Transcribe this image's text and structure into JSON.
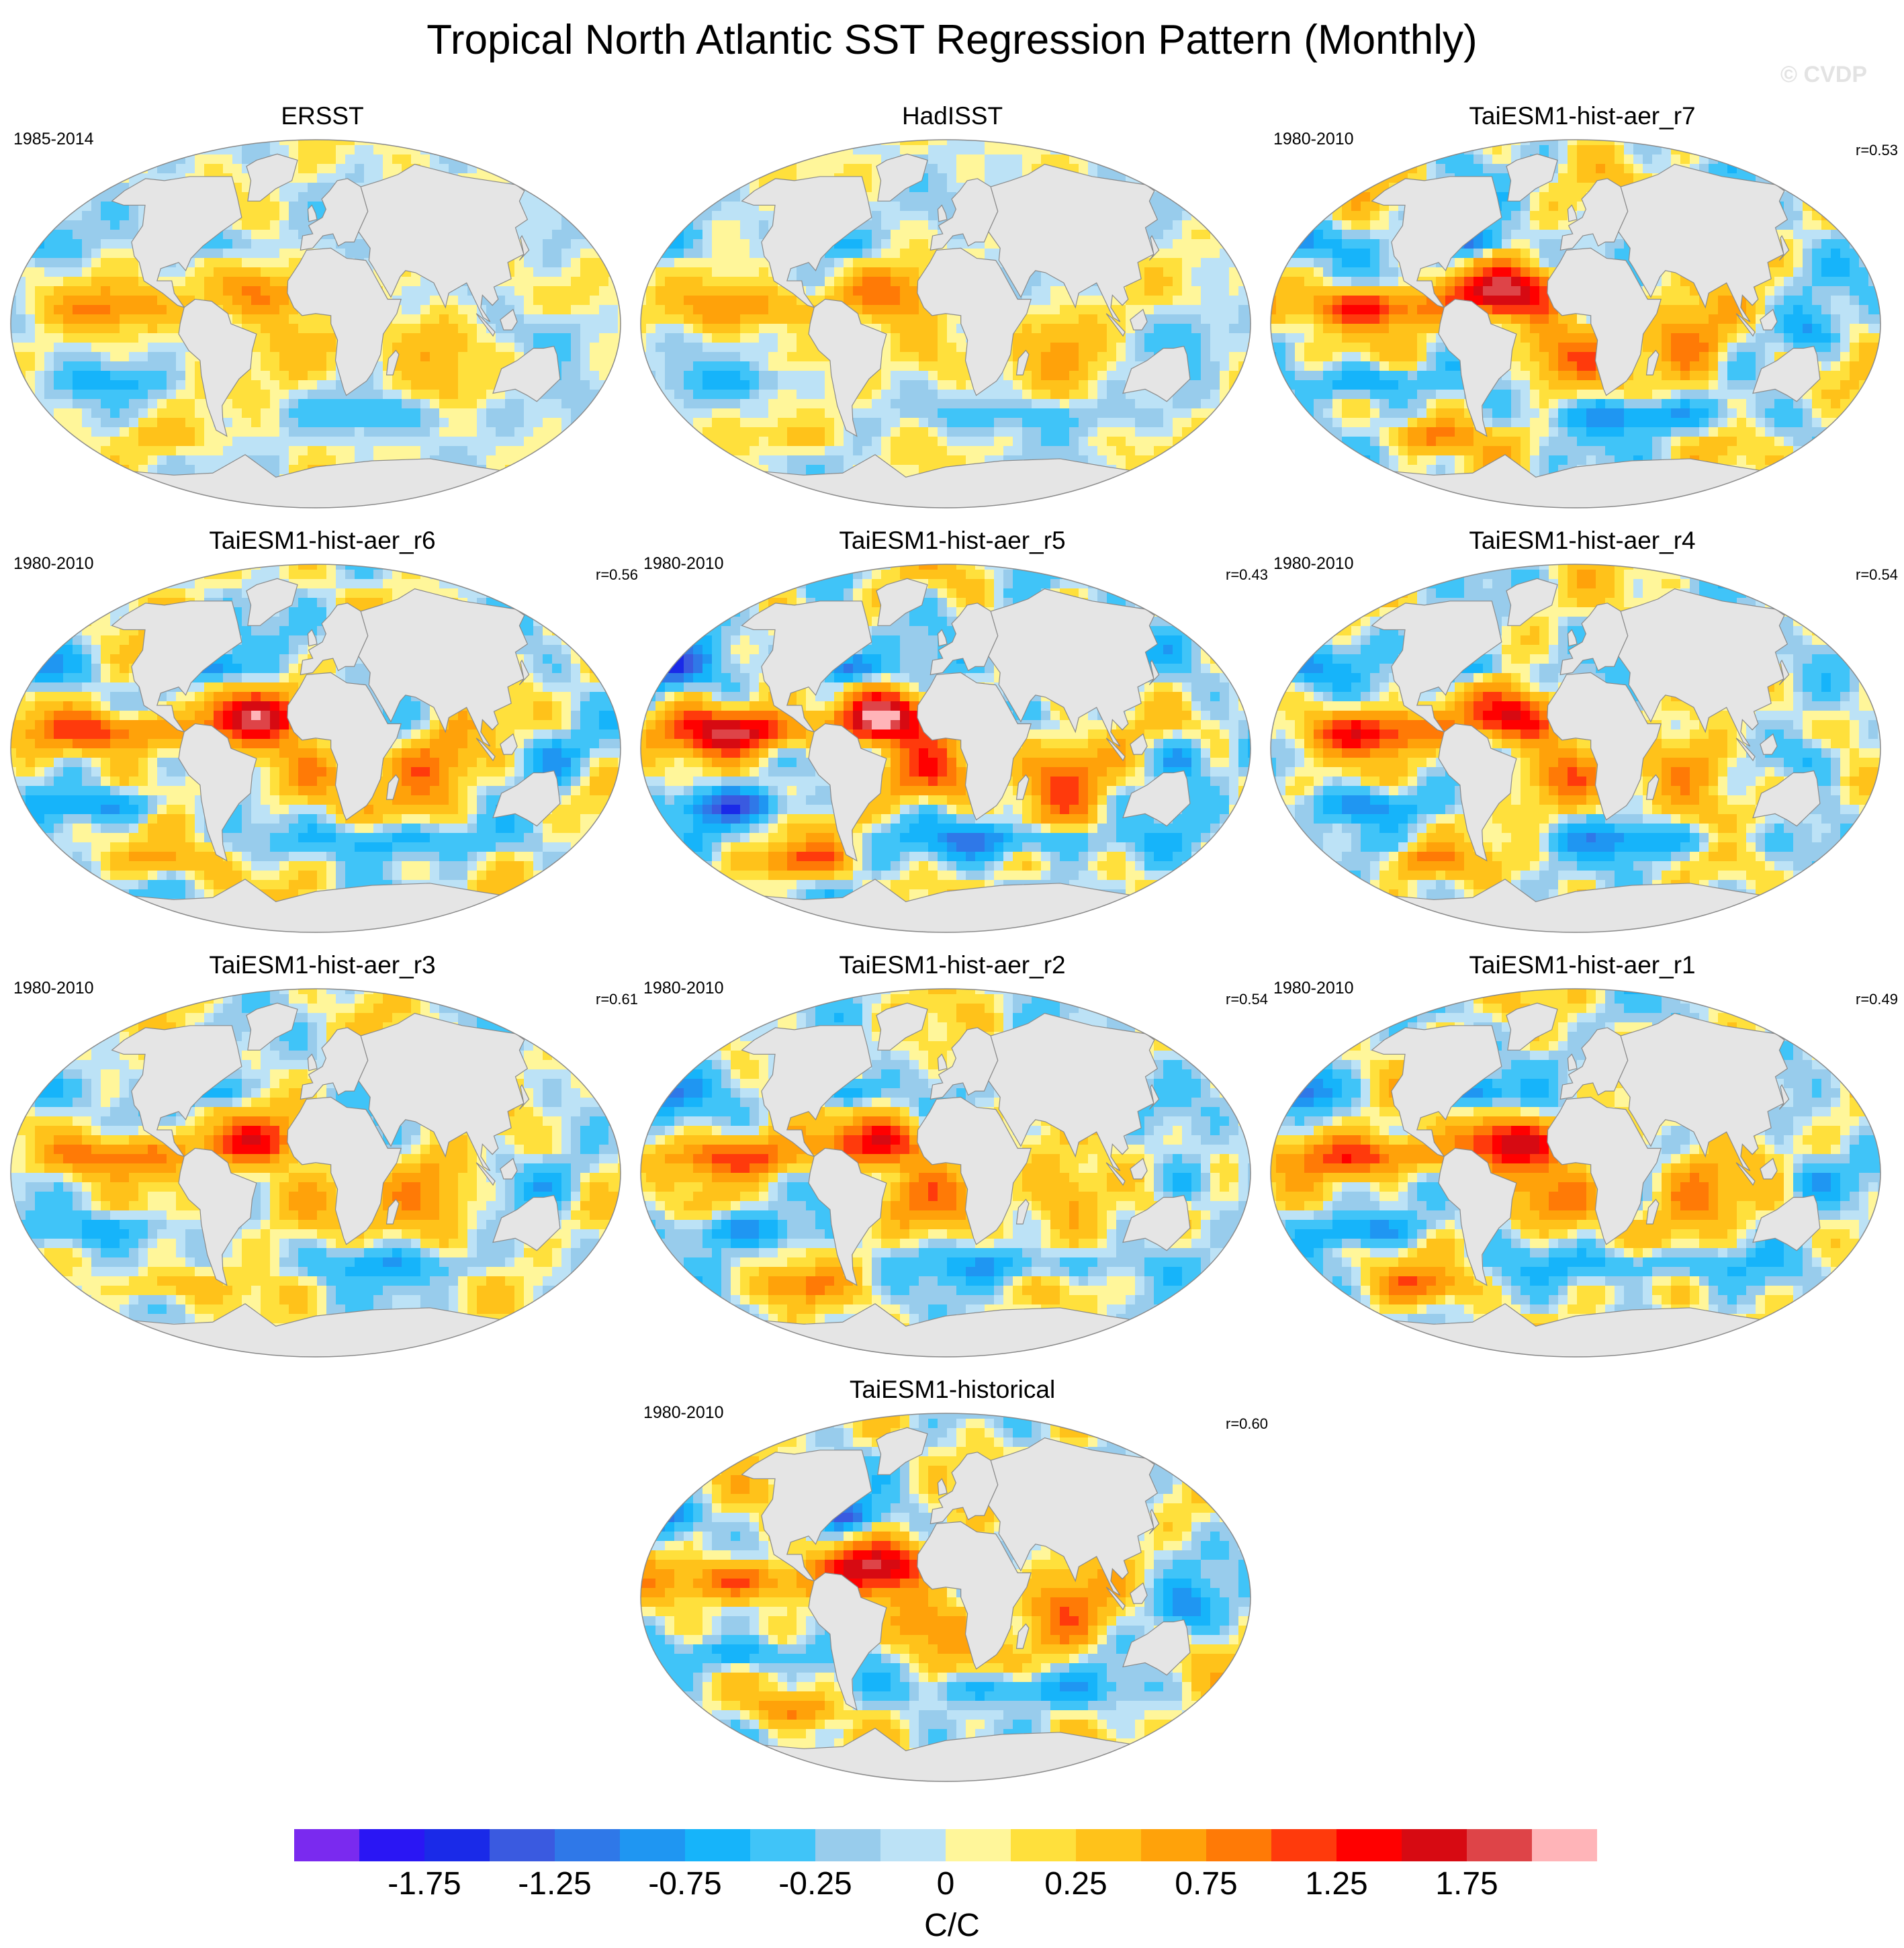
{
  "title": "Tropical North Atlantic SST Regression Pattern (Monthly)",
  "watermark": "© CVDP",
  "colorbar": {
    "units": "C/C",
    "tick_labels": [
      "-1.75",
      "-1.25",
      "-0.75",
      "-0.25",
      "0",
      "0.25",
      "0.75",
      "1.25",
      "1.75"
    ],
    "levels": [
      -2.0,
      -1.75,
      -1.5,
      -1.25,
      -1.0,
      -0.75,
      -0.5,
      -0.25,
      -0.1,
      0,
      0.1,
      0.25,
      0.5,
      0.75,
      1.0,
      1.25,
      1.5,
      1.75,
      2.0
    ],
    "colors": [
      "#7a2aef",
      "#2a16f4",
      "#1a2ae8",
      "#3a5ae0",
      "#2f78e8",
      "#1f96f2",
      "#16b4fa",
      "#40c4f8",
      "#98ccec",
      "#bce2f6",
      "#fff69a",
      "#ffe03c",
      "#ffc21a",
      "#ffa20a",
      "#ff7a06",
      "#ff3a0c",
      "#ff0000",
      "#d70a12",
      "#de4448",
      "#ffb4b8"
    ],
    "land_color": "#e5e5e5"
  },
  "panels": [
    {
      "title": "ERSST",
      "period": "1985-2014",
      "r": "",
      "amp": 0.55,
      "seed": 1
    },
    {
      "title": "HadISST",
      "period": "",
      "r": "",
      "amp": 0.55,
      "seed": 2
    },
    {
      "title": "TaiESM1-hist-aer_r7",
      "period": "1980-2010",
      "r": "r=0.53",
      "amp": 1.1,
      "seed": 7
    },
    {
      "title": "TaiESM1-hist-aer_r6",
      "period": "1980-2010",
      "r": "r=0.56",
      "amp": 1.0,
      "seed": 6
    },
    {
      "title": "TaiESM1-hist-aer_r5",
      "period": "1980-2010",
      "r": "r=0.43",
      "amp": 1.3,
      "seed": 5
    },
    {
      "title": "TaiESM1-hist-aer_r4",
      "period": "1980-2010",
      "r": "r=0.54",
      "amp": 1.0,
      "seed": 4
    },
    {
      "title": "TaiESM1-hist-aer_r3",
      "period": "1980-2010",
      "r": "r=0.61",
      "amp": 0.8,
      "seed": 3
    },
    {
      "title": "TaiESM1-hist-aer_r2",
      "period": "1980-2010",
      "r": "r=0.54",
      "amp": 0.9,
      "seed": 8
    },
    {
      "title": "TaiESM1-hist-aer_r1",
      "period": "1980-2010",
      "r": "r=0.49",
      "amp": 1.0,
      "seed": 9
    },
    {
      "title": "TaiESM1-historical",
      "period": "1980-2010",
      "r": "r=0.60",
      "amp": 1.0,
      "seed": 10
    }
  ]
}
